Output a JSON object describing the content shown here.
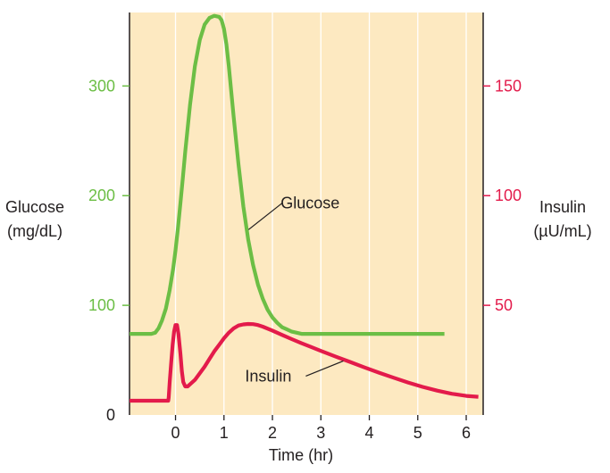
{
  "chart_data": {
    "type": "line",
    "xlabel": "Time (hr)",
    "xlim": [
      -0.95,
      6.35
    ],
    "x_ticks": [
      0,
      1,
      2,
      3,
      4,
      5,
      6
    ],
    "x_tick_labels": [
      "0",
      "1",
      "2",
      "3",
      "4",
      "5",
      "6"
    ],
    "grid": true,
    "background": "#fde9c1",
    "y_left": {
      "label_lines": [
        "Glucose",
        "(mg/dL)"
      ],
      "ylim": [
        0,
        367
      ],
      "ticks": [
        0,
        100,
        200,
        300
      ],
      "tick_labels": [
        "0",
        "100",
        "200",
        "300"
      ],
      "color": "#6cbe45"
    },
    "y_right": {
      "label_lines": [
        "Insulin",
        "(µU/mL)"
      ],
      "ylim": [
        0,
        183.5
      ],
      "ticks": [
        50,
        100,
        150
      ],
      "tick_labels": [
        "50",
        "100",
        "150"
      ],
      "color": "#e31b4b"
    },
    "series": [
      {
        "name": "Glucose",
        "axis": "left",
        "color": "#6cbe45",
        "x": [
          -0.95,
          -0.6,
          -0.5,
          -0.42,
          -0.35,
          -0.28,
          -0.2,
          -0.12,
          -0.05,
          0.0,
          0.05,
          0.1,
          0.15,
          0.2,
          0.3,
          0.4,
          0.5,
          0.6,
          0.7,
          0.8,
          0.9,
          0.95,
          1.0,
          1.05,
          1.1,
          1.2,
          1.3,
          1.4,
          1.5,
          1.6,
          1.7,
          1.8,
          1.9,
          2.0,
          2.1,
          2.2,
          2.3,
          2.4,
          2.5,
          2.6,
          2.7,
          2.8,
          5.55
        ],
        "y": [
          74,
          74,
          74,
          75,
          79,
          86,
          97,
          114,
          133,
          150,
          170,
          193,
          216,
          240,
          283,
          318,
          342,
          356,
          362,
          364,
          363,
          360,
          352,
          338,
          318,
          272,
          228,
          190,
          160,
          137,
          119,
          106,
          96,
          89,
          84,
          80,
          78,
          76,
          75,
          74,
          74,
          74,
          74
        ]
      },
      {
        "name": "Insulin",
        "axis": "right",
        "color": "#e31b4b",
        "x": [
          -0.95,
          -0.15,
          -0.14,
          -0.12,
          -0.09,
          -0.06,
          -0.03,
          0.0,
          0.03,
          0.06,
          0.1,
          0.13,
          0.16,
          0.2,
          0.25,
          0.3,
          0.4,
          0.5,
          0.6,
          0.7,
          0.8,
          0.9,
          1.0,
          1.1,
          1.2,
          1.3,
          1.4,
          1.5,
          1.6,
          1.7,
          1.8,
          2.0,
          2.2,
          2.4,
          2.6,
          2.8,
          3.0,
          3.3,
          3.6,
          3.9,
          4.2,
          4.5,
          4.8,
          5.1,
          5.4,
          5.7,
          6.0,
          6.25
        ],
        "y": [
          6.5,
          6.5,
          8,
          15,
          24,
          32,
          38,
          41,
          41,
          37,
          28,
          20,
          15,
          13,
          13,
          14,
          16,
          19,
          22,
          25.5,
          29,
          32,
          35,
          37.5,
          39.5,
          40.8,
          41.3,
          41.5,
          41.4,
          41,
          40.3,
          38.5,
          36.5,
          34.6,
          32.7,
          31,
          29.2,
          26.7,
          24.2,
          21.7,
          19.3,
          17,
          14.8,
          12.8,
          11.1,
          9.7,
          8.7,
          8.3
        ]
      }
    ],
    "annotations": [
      {
        "text": "Glucose",
        "series": "Glucose"
      },
      {
        "text": "Insulin",
        "series": "Insulin"
      }
    ]
  }
}
